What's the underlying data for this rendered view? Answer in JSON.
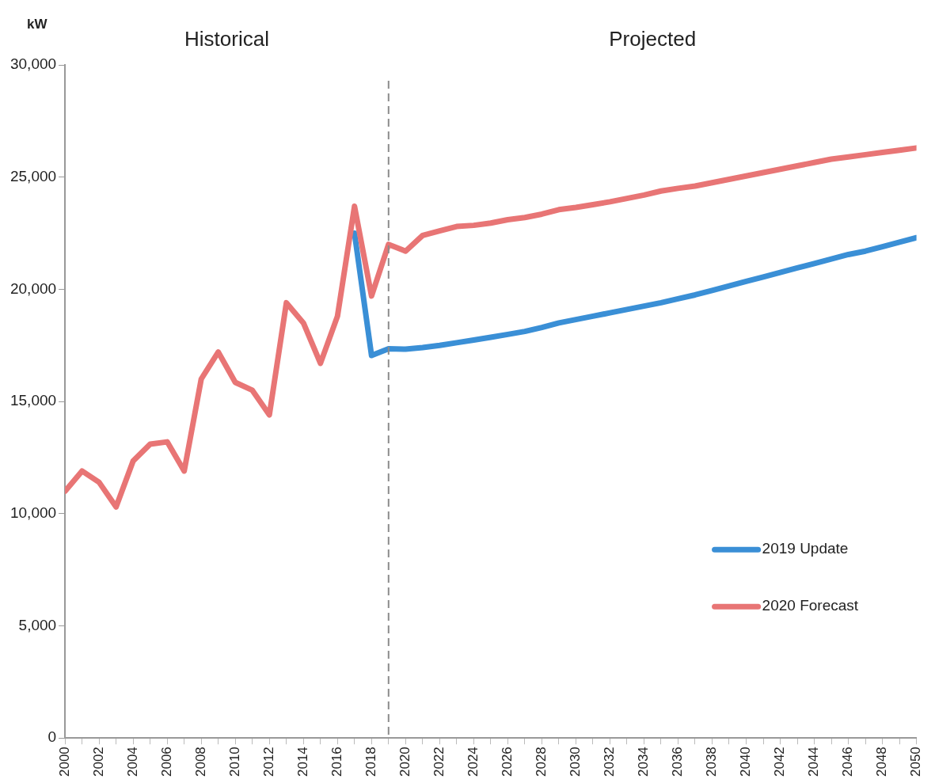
{
  "chart_data": {
    "type": "line",
    "ylabel": "kW",
    "annotations": [
      "Historical",
      "Projected"
    ],
    "x": [
      2000,
      2001,
      2002,
      2003,
      2004,
      2005,
      2006,
      2007,
      2008,
      2009,
      2010,
      2011,
      2012,
      2013,
      2014,
      2015,
      2016,
      2017,
      2018,
      2019,
      2020,
      2021,
      2022,
      2023,
      2024,
      2025,
      2026,
      2027,
      2028,
      2029,
      2030,
      2031,
      2032,
      2033,
      2034,
      2035,
      2036,
      2037,
      2038,
      2039,
      2040,
      2041,
      2042,
      2043,
      2044,
      2045,
      2046,
      2047,
      2048,
      2049,
      2050
    ],
    "xlim": [
      2000,
      2050
    ],
    "xticks": [
      2000,
      {
        "value": 2001,
        "label": null
      },
      2002,
      {
        "value": 2003,
        "label": null
      },
      2004,
      {
        "value": 2005,
        "label": null
      },
      2006,
      {
        "value": 2007,
        "label": null
      },
      2008,
      {
        "value": 2009,
        "label": null
      },
      2010,
      {
        "value": 2011,
        "label": null
      },
      2012,
      {
        "value": 2013,
        "label": null
      },
      2014,
      {
        "value": 2015,
        "label": null
      },
      2016,
      {
        "value": 2017,
        "label": null
      },
      2018,
      {
        "value": 2019,
        "label": null
      },
      2020,
      {
        "value": 2021,
        "label": null
      },
      2022,
      {
        "value": 2023,
        "label": null
      },
      2024,
      {
        "value": 2025,
        "label": null
      },
      2026,
      {
        "value": 2027,
        "label": null
      },
      2028,
      {
        "value": 2029,
        "label": null
      },
      2030,
      {
        "value": 2031,
        "label": null
      },
      2032,
      {
        "value": 2033,
        "label": null
      },
      2034,
      {
        "value": 2035,
        "label": null
      },
      2036,
      {
        "value": 2037,
        "label": null
      },
      2038,
      {
        "value": 2039,
        "label": null
      },
      2040,
      {
        "value": 2041,
        "label": null
      },
      2042,
      {
        "value": 2043,
        "label": null
      },
      2044,
      {
        "value": 2045,
        "label": null
      },
      2046,
      {
        "value": 2047,
        "label": null
      },
      2048,
      {
        "value": 2049,
        "label": null
      },
      2050
    ],
    "series": [
      {
        "name": "2019 Update",
        "color": "#3a8fd6",
        "values": [
          null,
          null,
          null,
          null,
          null,
          null,
          null,
          null,
          null,
          null,
          null,
          null,
          null,
          null,
          null,
          null,
          null,
          22500,
          17050,
          17350,
          17330,
          17400,
          17500,
          17620,
          17740,
          17860,
          17990,
          18120,
          18300,
          18500,
          18650,
          18800,
          18950,
          19100,
          19250,
          19400,
          19580,
          19750,
          19950,
          20150,
          20350,
          20550,
          20750,
          20950,
          21150,
          21350,
          21550,
          21700,
          21900,
          22100,
          22300
        ]
      },
      {
        "name": "2020 Forecast",
        "color": "#e87575",
        "values": [
          11000,
          11900,
          11400,
          10300,
          12350,
          13100,
          13200,
          11900,
          16000,
          17200,
          15850,
          15500,
          14400,
          19400,
          18500,
          16700,
          18800,
          23700,
          19700,
          22000,
          21700,
          22400,
          22600,
          22800,
          22850,
          22950,
          23100,
          23200,
          23350,
          23550,
          23650,
          23770,
          23900,
          24050,
          24200,
          24380,
          24500,
          24600,
          24750,
          24900,
          25050,
          25200,
          25350,
          25500,
          25650,
          25800,
          25900,
          26000,
          26100,
          26200,
          26300
        ]
      }
    ],
    "ylim": [
      0,
      30000
    ],
    "yticks": [
      0,
      {
        "value": 5000,
        "label": "5,000"
      },
      {
        "value": 10000,
        "label": "10,000"
      },
      {
        "value": 15000,
        "label": "15,000"
      },
      {
        "value": 20000,
        "label": "20,000"
      },
      {
        "value": 25000,
        "label": "25,000"
      },
      {
        "value": 30000,
        "label": "30,000"
      }
    ],
    "ref_lines": [
      {
        "axis": "x",
        "value": 2019,
        "color": "#8c8c8c",
        "line_style": "dashed"
      }
    ],
    "grid": false,
    "legend": "right",
    "marker": "none",
    "line_style": "solid"
  }
}
